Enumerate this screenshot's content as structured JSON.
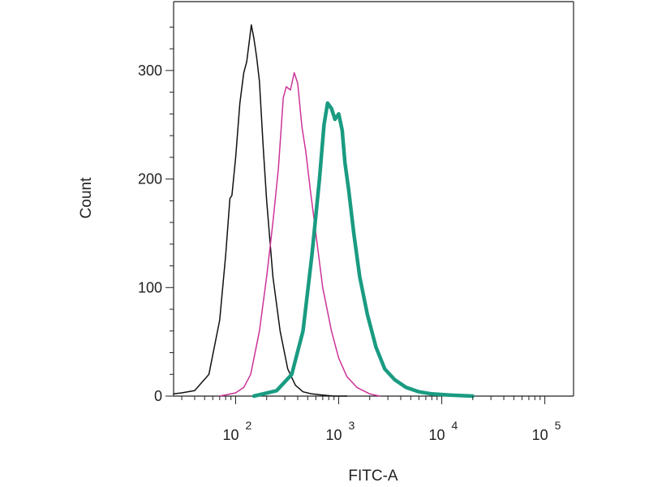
{
  "chart_data": {
    "type": "line",
    "xlabel": "FITC-A",
    "ylabel": "Count",
    "x_scale": "log",
    "xlim": [
      25,
      190000
    ],
    "ylim": [
      0,
      350
    ],
    "y_ticks": [
      0,
      100,
      200,
      300
    ],
    "x_ticks": [
      {
        "value": 100,
        "base": "10",
        "exp": "2"
      },
      {
        "value": 1000,
        "base": "10",
        "exp": "3"
      },
      {
        "value": 10000,
        "base": "10",
        "exp": "4"
      },
      {
        "value": 100000,
        "base": "10",
        "exp": "5"
      }
    ],
    "grid": false,
    "legend": "none",
    "series": [
      {
        "color": "#111111",
        "line_weight": "thin",
        "x": [
          25,
          30,
          40,
          55,
          70,
          80,
          88,
          92,
          100,
          110,
          120,
          128,
          135,
          142,
          150,
          160,
          170,
          185,
          200,
          230,
          270,
          320,
          380,
          450,
          550,
          700,
          900,
          1200
        ],
        "y": [
          2,
          3,
          5,
          20,
          70,
          130,
          182,
          185,
          220,
          270,
          298,
          308,
          325,
          342,
          330,
          312,
          290,
          230,
          180,
          110,
          60,
          25,
          10,
          4,
          2,
          1,
          0,
          0
        ]
      },
      {
        "color": "#cc3399",
        "line_weight": "thin",
        "x": [
          70,
          100,
          120,
          140,
          170,
          200,
          230,
          260,
          290,
          310,
          340,
          370,
          400,
          440,
          480,
          530,
          600,
          700,
          850,
          1000,
          1200,
          1500,
          2000,
          2500
        ],
        "y": [
          0,
          3,
          8,
          20,
          60,
          110,
          160,
          210,
          275,
          285,
          282,
          298,
          288,
          248,
          225,
          190,
          150,
          100,
          60,
          35,
          18,
          8,
          2,
          0
        ]
      },
      {
        "color": "#1a9b82",
        "line_weight": "thick",
        "x": [
          150,
          250,
          350,
          450,
          550,
          650,
          720,
          780,
          850,
          920,
          1000,
          1080,
          1150,
          1250,
          1400,
          1600,
          1900,
          2300,
          2800,
          3500,
          4500,
          6000,
          8000,
          12000,
          20000
        ],
        "y": [
          0,
          5,
          20,
          60,
          130,
          200,
          250,
          270,
          265,
          255,
          260,
          245,
          215,
          190,
          150,
          110,
          75,
          45,
          25,
          15,
          8,
          4,
          2,
          1,
          0
        ]
      }
    ]
  }
}
